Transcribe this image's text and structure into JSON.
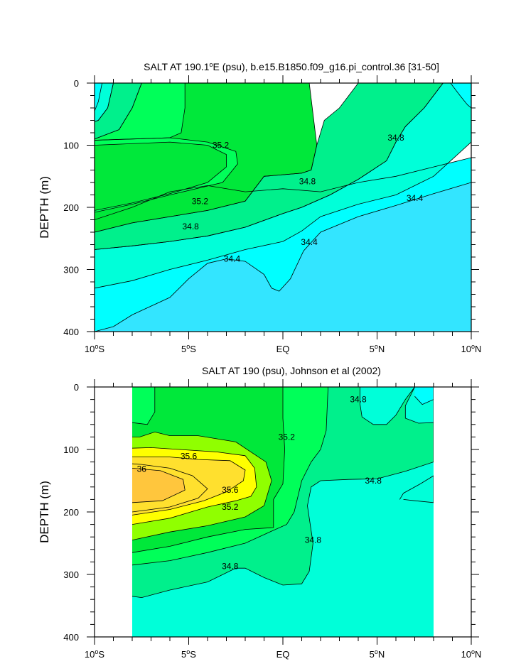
{
  "chart_data": [
    {
      "type": "contour",
      "title": "SALT AT 190.1°E (psu), b.e15.B1850.f09_g16.pi_control.36 [31-50]",
      "ylabel": "DEPTH (m)",
      "xlabel": "",
      "xlim": [
        -10,
        10
      ],
      "ylim": [
        0,
        400
      ],
      "y_inverted": true,
      "x_ticks": [
        {
          "value": -10,
          "label": "10°S"
        },
        {
          "value": -5,
          "label": "5°S"
        },
        {
          "value": 0,
          "label": "EQ"
        },
        {
          "value": 5,
          "label": "5°N"
        },
        {
          "value": 10,
          "label": "10°N"
        }
      ],
      "y_ticks": [
        {
          "value": 0,
          "label": "0"
        },
        {
          "value": 100,
          "label": "100"
        },
        {
          "value": 200,
          "label": "200"
        },
        {
          "value": 300,
          "label": "300"
        },
        {
          "value": 400,
          "label": "400"
        }
      ],
      "data_xrange": [
        -10,
        10
      ],
      "levels": [
        34.4,
        34.6,
        34.8,
        35.0,
        35.2
      ],
      "colors": {
        "lt34.4": "#33e5ff",
        "34.4-34.6": "#00ffff",
        "34.6-34.8": "#00ffd9",
        "34.8-35.0": "#00f08c",
        "35.0-35.2": "#00ff59",
        "gt35.2": "#00e83a"
      },
      "contour_labels": [
        {
          "text": "35.2",
          "x": -3.3,
          "y": 100
        },
        {
          "text": "35.2",
          "x": -4.4,
          "y": 190
        },
        {
          "text": "34.8",
          "x": -4.9,
          "y": 231
        },
        {
          "text": "34.8",
          "x": 1.3,
          "y": 158
        },
        {
          "text": "34.8",
          "x": 6.0,
          "y": 88
        },
        {
          "text": "34.4",
          "x": -2.7,
          "y": 283
        },
        {
          "text": "34.4",
          "x": 1.4,
          "y": 256
        },
        {
          "text": "34.4",
          "x": 7.0,
          "y": 185
        }
      ]
    },
    {
      "type": "contour",
      "title": "SALT AT 190 (psu), Johnson et al (2002)",
      "ylabel": "DEPTH (m)",
      "xlabel": "",
      "xlim": [
        -10,
        10
      ],
      "ylim": [
        0,
        400
      ],
      "y_inverted": true,
      "x_ticks": [
        {
          "value": -10,
          "label": "10°S"
        },
        {
          "value": -5,
          "label": "5°S"
        },
        {
          "value": 0,
          "label": "EQ"
        },
        {
          "value": 5,
          "label": "5°N"
        },
        {
          "value": 10,
          "label": "10°N"
        }
      ],
      "y_ticks": [
        {
          "value": 0,
          "label": "0"
        },
        {
          "value": 100,
          "label": "100"
        },
        {
          "value": 200,
          "label": "200"
        },
        {
          "value": 300,
          "label": "300"
        },
        {
          "value": 400,
          "label": "400"
        }
      ],
      "data_xrange": [
        -8,
        8
      ],
      "levels": [
        34.6,
        34.8,
        35.0,
        35.2,
        35.4,
        35.6,
        35.8,
        36.0
      ],
      "colors": {
        "34.4-34.6": "#00ffff",
        "34.6-34.8": "#00ffd9",
        "34.8-35.0": "#00f08c",
        "35.0-35.2": "#00ff59",
        "35.2-35.4": "#00e83a",
        "35.4-35.6": "#90ff00",
        "35.6-35.8": "#ffff00",
        "35.8-36.0": "#ffe02e",
        "gt36.0": "#ffc63d"
      },
      "contour_labels": [
        {
          "text": "35.6",
          "x": -5.0,
          "y": 111
        },
        {
          "text": "36",
          "x": -7.5,
          "y": 131
        },
        {
          "text": "35.6",
          "x": -2.8,
          "y": 165
        },
        {
          "text": "35.2",
          "x": -2.8,
          "y": 192
        },
        {
          "text": "35.2",
          "x": 0.2,
          "y": 80
        },
        {
          "text": "34.8",
          "x": 4.0,
          "y": 20
        },
        {
          "text": "34.8",
          "x": 4.8,
          "y": 150
        },
        {
          "text": "34.8",
          "x": 1.6,
          "y": 245
        },
        {
          "text": "34.8",
          "x": -2.8,
          "y": 287
        }
      ]
    }
  ]
}
